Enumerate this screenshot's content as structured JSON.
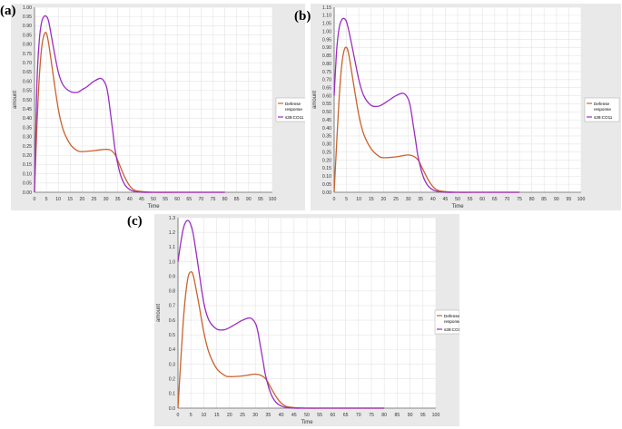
{
  "panel_labels": [
    "(a)",
    "(b)",
    "(c)"
  ],
  "colors": {
    "defense": "#c8632e",
    "s39": "#9a2ec0",
    "grid": "#e4e4e4",
    "axis": "#666666"
  },
  "chart_data": [
    {
      "type": "line",
      "xlabel": "Time",
      "ylabel": "amount",
      "xlim": [
        0,
        100
      ],
      "ylim": [
        0,
        1.0
      ],
      "xticks": [
        0,
        5,
        10,
        15,
        20,
        25,
        30,
        35,
        40,
        45,
        50,
        55,
        60,
        65,
        70,
        75,
        80,
        85,
        90,
        95,
        100
      ],
      "yticks": [
        0,
        0.05,
        0.1,
        0.15,
        0.2,
        0.25,
        0.3,
        0.35,
        0.4,
        0.45,
        0.5,
        0.55,
        0.6,
        0.65,
        0.7,
        0.75,
        0.8,
        0.85,
        0.9,
        0.95,
        1.0
      ],
      "ytick_labels": [
        "0.00",
        "0.05",
        "0.10",
        "0.15",
        "0.20",
        "0.25",
        "0.30",
        "0.35",
        "0.40",
        "0.45",
        "0.50",
        "0.55",
        "0.60",
        "0.65",
        "0.70",
        "0.75",
        "0.80",
        "0.85",
        "0.90",
        "0.95",
        "1.00"
      ],
      "legend": {
        "placement": "right",
        "entries": [
          "Defense response",
          "s39:CO11"
        ]
      },
      "series": [
        {
          "name": "Defense response",
          "x": [
            0,
            1,
            2,
            3,
            4,
            5,
            6,
            8,
            10,
            12,
            15,
            18,
            20,
            25,
            28,
            30,
            32,
            34,
            36,
            38,
            40,
            42,
            45,
            50,
            60,
            80
          ],
          "y": [
            0,
            0.35,
            0.62,
            0.78,
            0.85,
            0.86,
            0.8,
            0.62,
            0.45,
            0.34,
            0.26,
            0.225,
            0.22,
            0.225,
            0.23,
            0.232,
            0.228,
            0.2,
            0.14,
            0.08,
            0.035,
            0.012,
            0.004,
            0,
            0,
            0
          ]
        },
        {
          "name": "s39:CO11",
          "x": [
            0,
            1,
            2,
            3,
            4,
            5,
            6,
            8,
            10,
            12,
            15,
            18,
            20,
            22,
            25,
            28,
            30,
            31,
            32,
            33,
            34,
            36,
            38,
            40,
            42,
            45,
            50,
            60,
            80
          ],
          "y": [
            0,
            0.58,
            0.82,
            0.92,
            0.95,
            0.95,
            0.92,
            0.78,
            0.65,
            0.58,
            0.545,
            0.54,
            0.555,
            0.57,
            0.6,
            0.615,
            0.58,
            0.52,
            0.42,
            0.32,
            0.22,
            0.1,
            0.04,
            0.015,
            0.005,
            0,
            0,
            0,
            0
          ]
        }
      ]
    },
    {
      "type": "line",
      "xlabel": "Time",
      "ylabel": "amount",
      "xlim": [
        0,
        100
      ],
      "ylim": [
        0,
        1.15
      ],
      "xticks": [
        0,
        5,
        10,
        15,
        20,
        25,
        30,
        35,
        40,
        45,
        50,
        55,
        60,
        65,
        70,
        75,
        80,
        85,
        90,
        95,
        100
      ],
      "yticks": [
        0,
        0.05,
        0.1,
        0.15,
        0.2,
        0.25,
        0.3,
        0.35,
        0.4,
        0.45,
        0.5,
        0.55,
        0.6,
        0.65,
        0.7,
        0.75,
        0.8,
        0.85,
        0.9,
        0.95,
        1.0,
        1.05,
        1.1,
        1.15
      ],
      "ytick_labels": [
        "0.00",
        "0.05",
        "0.10",
        "0.15",
        "0.20",
        "0.25",
        "0.30",
        "0.35",
        "0.40",
        "0.45",
        "0.50",
        "0.55",
        "0.60",
        "0.65",
        "0.70",
        "0.75",
        "0.80",
        "0.85",
        "0.90",
        "0.95",
        "1.00",
        "1.05",
        "1.10",
        "1.15"
      ],
      "legend": {
        "placement": "right",
        "entries": [
          "Defense response",
          "s39:CO11"
        ]
      },
      "series": [
        {
          "name": "Defense response",
          "x": [
            0,
            1,
            2,
            3,
            4,
            5,
            6,
            8,
            10,
            12,
            15,
            18,
            20,
            25,
            28,
            30,
            32,
            34,
            36,
            38,
            40,
            42,
            45,
            50,
            60,
            75
          ],
          "y": [
            0,
            0.3,
            0.58,
            0.78,
            0.88,
            0.9,
            0.85,
            0.66,
            0.48,
            0.36,
            0.27,
            0.225,
            0.215,
            0.22,
            0.228,
            0.232,
            0.225,
            0.2,
            0.14,
            0.08,
            0.035,
            0.012,
            0.004,
            0,
            0,
            0
          ]
        },
        {
          "name": "s39:CO11",
          "x": [
            0,
            1,
            2,
            3,
            4,
            5,
            6,
            8,
            10,
            12,
            15,
            18,
            20,
            22,
            25,
            28,
            30,
            31,
            32,
            33,
            34,
            36,
            38,
            40,
            42,
            45,
            50,
            60,
            75
          ],
          "y": [
            0.6,
            0.88,
            1.02,
            1.07,
            1.08,
            1.06,
            1.0,
            0.85,
            0.7,
            0.6,
            0.54,
            0.535,
            0.55,
            0.57,
            0.6,
            0.615,
            0.58,
            0.52,
            0.42,
            0.32,
            0.22,
            0.1,
            0.04,
            0.015,
            0.005,
            0,
            0,
            0,
            0
          ]
        }
      ]
    },
    {
      "type": "line",
      "xlabel": "Time",
      "ylabel": "amount",
      "xlim": [
        0,
        100
      ],
      "ylim": [
        0,
        1.3
      ],
      "xticks": [
        0,
        5,
        10,
        15,
        20,
        25,
        30,
        35,
        40,
        45,
        50,
        55,
        60,
        65,
        70,
        75,
        80,
        85,
        90,
        95,
        100
      ],
      "yticks": [
        0,
        0.1,
        0.2,
        0.3,
        0.4,
        0.5,
        0.6,
        0.7,
        0.8,
        0.9,
        1.0,
        1.1,
        1.2,
        1.3
      ],
      "ytick_labels": [
        "0.0",
        "0.1",
        "0.2",
        "0.3",
        "0.4",
        "0.5",
        "0.6",
        "0.7",
        "0.8",
        "0.9",
        "1.0",
        "1.1",
        "1.2",
        "1.3"
      ],
      "legend": {
        "placement": "right",
        "entries": [
          "Defense response",
          "s39:CO11"
        ]
      },
      "series": [
        {
          "name": "Defense response",
          "x": [
            0,
            1,
            2,
            3,
            4,
            5,
            6,
            8,
            10,
            12,
            15,
            18,
            20,
            25,
            28,
            30,
            32,
            34,
            36,
            38,
            40,
            42,
            45,
            50,
            60,
            80
          ],
          "y": [
            0,
            0.3,
            0.58,
            0.78,
            0.9,
            0.93,
            0.9,
            0.72,
            0.52,
            0.38,
            0.27,
            0.225,
            0.215,
            0.22,
            0.228,
            0.232,
            0.225,
            0.2,
            0.14,
            0.08,
            0.035,
            0.012,
            0.004,
            0,
            0,
            0
          ]
        },
        {
          "name": "s39:CO11",
          "x": [
            0,
            1,
            2,
            3,
            4,
            5,
            6,
            8,
            10,
            12,
            15,
            18,
            20,
            22,
            25,
            28,
            30,
            31,
            32,
            33,
            34,
            36,
            38,
            40,
            42,
            45,
            50,
            60,
            80
          ],
          "y": [
            1.0,
            1.12,
            1.22,
            1.27,
            1.28,
            1.25,
            1.18,
            0.95,
            0.72,
            0.6,
            0.54,
            0.535,
            0.55,
            0.57,
            0.6,
            0.615,
            0.58,
            0.52,
            0.42,
            0.32,
            0.22,
            0.1,
            0.04,
            0.015,
            0.005,
            0,
            0,
            0,
            0
          ]
        }
      ]
    }
  ]
}
